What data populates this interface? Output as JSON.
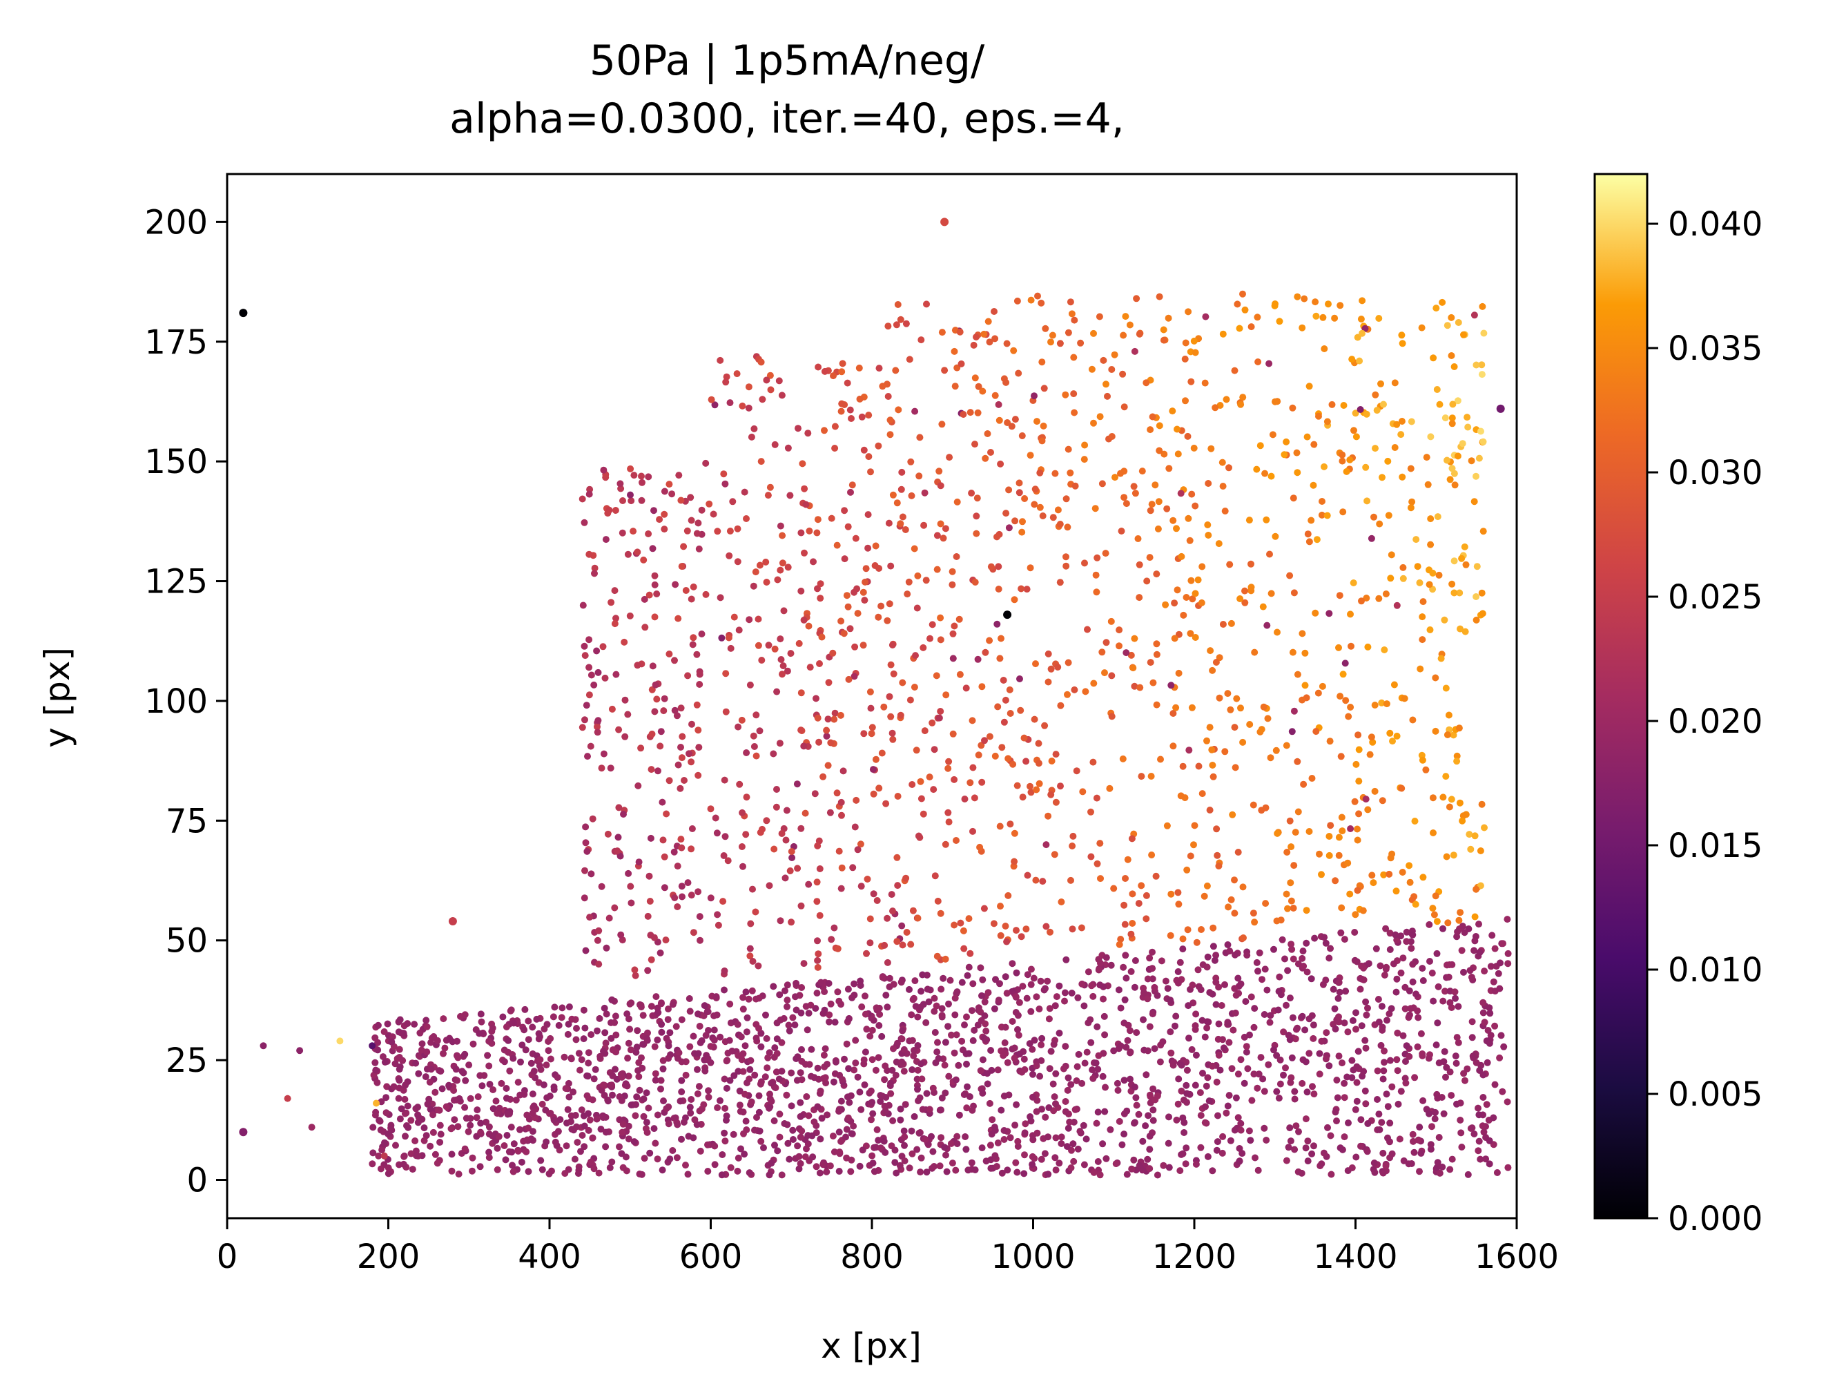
{
  "chart_data": {
    "type": "scatter",
    "title": "50Pa | 1p5mA/neg/",
    "subtitle": "alpha=0.0300, iter.=40, eps.=4,",
    "xlabel": "x [px]",
    "ylabel": "y [px]",
    "xlim": [
      0,
      1600
    ],
    "ylim": [
      -8,
      210
    ],
    "xticks": [
      "0",
      "200",
      "400",
      "600",
      "800",
      "1000",
      "1200",
      "1400",
      "1600"
    ],
    "yticks": [
      "0",
      "25",
      "50",
      "75",
      "100",
      "125",
      "150",
      "175",
      "200"
    ],
    "grid": false,
    "colormap": "inferno",
    "colorbar": {
      "range": [
        0,
        0.042
      ],
      "ticks": [
        "0.000",
        "0.005",
        "0.010",
        "0.015",
        "0.020",
        "0.025",
        "0.030",
        "0.035",
        "0.040"
      ]
    },
    "clusters": [
      {
        "name": "lower band",
        "x_range": [
          180,
          1590
        ],
        "y_range": [
          1,
          56
        ],
        "color_value": 0.019,
        "count": 2200
      },
      {
        "name": "upper region",
        "x_range": [
          440,
          1560
        ],
        "y_range": [
          40,
          185
        ],
        "color_value_range": [
          0.021,
          0.042
        ],
        "count": 1500
      }
    ],
    "highlighted_points": [
      {
        "x": 20,
        "y": 181,
        "value": 0.0
      },
      {
        "x": 968,
        "y": 118,
        "value": 0.0
      },
      {
        "x": 1580,
        "y": 161,
        "value": 0.015
      },
      {
        "x": 890,
        "y": 200,
        "value": 0.027
      },
      {
        "x": 20,
        "y": 10,
        "value": 0.017
      },
      {
        "x": 280,
        "y": 54,
        "value": 0.025
      }
    ]
  }
}
